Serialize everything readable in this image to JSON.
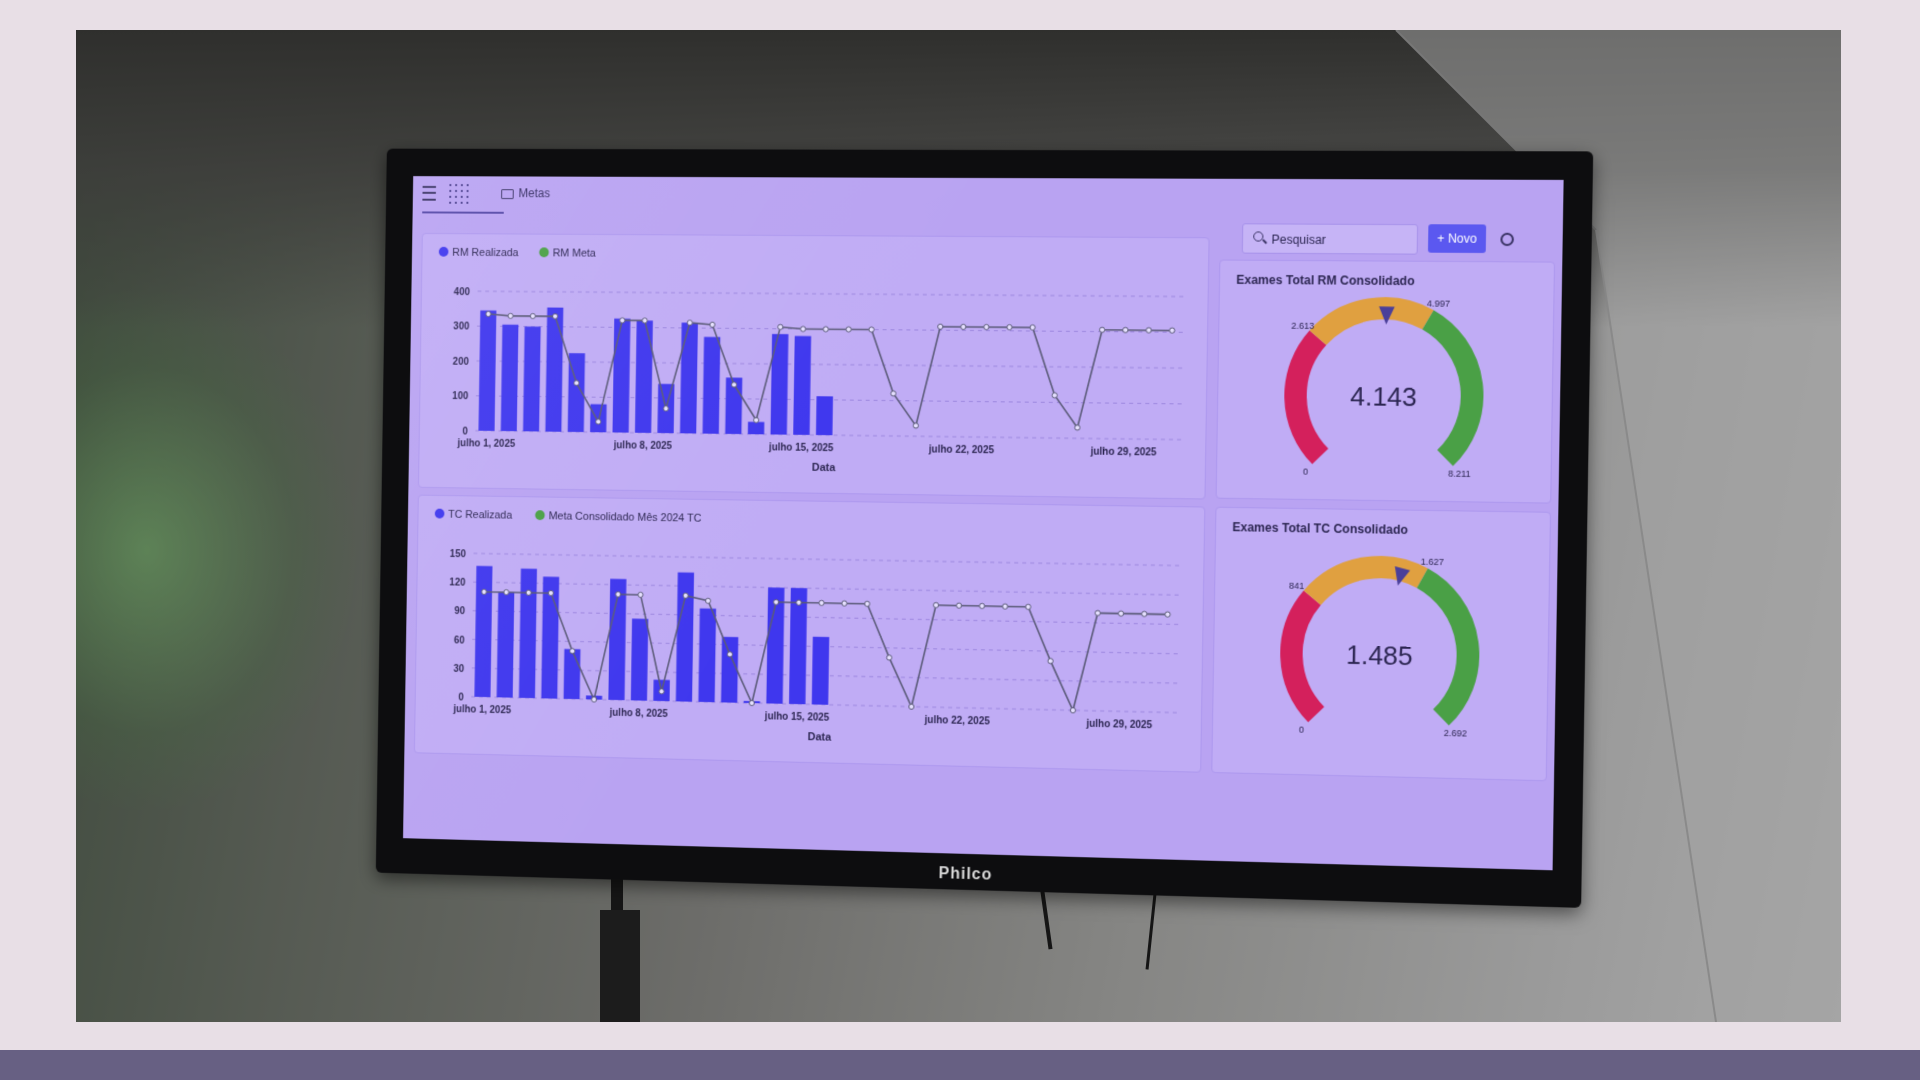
{
  "app": {
    "breadcrumb": "Metas",
    "search_placeholder": "Pesquisar",
    "new_button_label": "+ Novo",
    "monitor_brand": "Philco"
  },
  "charts": {
    "rm": {
      "legend": [
        "RM Realizada",
        "RM Meta"
      ],
      "xlabel": "Data",
      "y_ticks": [
        "0",
        "100",
        "200",
        "300",
        "400"
      ],
      "x_ticks": [
        "julho 1, 2025",
        "julho 8, 2025",
        "julho 15, 2025",
        "julho 22, 2025",
        "julho 29, 2025"
      ]
    },
    "tc": {
      "legend": [
        "TC Realizada",
        "Meta Consolidado Mês 2024 TC"
      ],
      "xlabel": "Data",
      "y_ticks": [
        "0",
        "30",
        "60",
        "90",
        "120",
        "150"
      ],
      "x_ticks": [
        "julho 1, 2025",
        "julho 8, 2025",
        "julho 15, 2025",
        "julho 22, 2025",
        "julho 29, 2025"
      ]
    },
    "gauge_rm": {
      "title": "Exames Total RM Consolidado",
      "value_label": "4.143",
      "value": 4143,
      "min": 0,
      "max": 8211,
      "t1": 2613,
      "t2": 4997,
      "labels": [
        "0",
        "2.613",
        "4.997",
        "8.211"
      ]
    },
    "gauge_tc": {
      "title": "Exames Total TC Consolidado",
      "value_label": "1.485",
      "value": 1485,
      "min": 0,
      "max": 2692,
      "t1": 841,
      "t2": 1627,
      "labels": [
        "0",
        "841",
        "1.627",
        "2.692"
      ]
    }
  },
  "colors": {
    "bar": "#3f37ee",
    "line": "#5a5a78",
    "red": "#d4205c",
    "orange": "#e0a040",
    "green": "#4aa046"
  },
  "chart_data": [
    {
      "type": "bar",
      "categories": [
        "2025-07-01",
        "2025-07-02",
        "2025-07-03",
        "2025-07-04",
        "2025-07-05",
        "2025-07-06",
        "2025-07-07",
        "2025-07-08",
        "2025-07-09",
        "2025-07-10",
        "2025-07-11",
        "2025-07-12",
        "2025-07-13",
        "2025-07-14",
        "2025-07-15",
        "2025-07-16",
        "2025-07-17",
        "2025-07-18",
        "2025-07-19",
        "2025-07-20",
        "2025-07-21",
        "2025-07-22",
        "2025-07-23",
        "2025-07-24",
        "2025-07-25",
        "2025-07-26",
        "2025-07-27",
        "2025-07-28",
        "2025-07-29",
        "2025-07-30",
        "2025-07-31"
      ],
      "series": [
        {
          "name": "RM Realizada",
          "values": [
            345,
            305,
            300,
            355,
            225,
            80,
            325,
            320,
            140,
            315,
            275,
            160,
            35,
            285,
            280,
            110,
            null,
            null,
            null,
            null,
            null,
            null,
            null,
            null,
            null,
            null,
            null,
            null,
            null,
            null,
            null
          ]
        },
        {
          "name": "RM Meta",
          "values": [
            335,
            330,
            330,
            330,
            140,
            30,
            320,
            320,
            70,
            315,
            310,
            140,
            40,
            305,
            300,
            300,
            300,
            300,
            120,
            30,
            310,
            310,
            310,
            310,
            310,
            120,
            30,
            305,
            305,
            305,
            305
          ]
        }
      ],
      "xlabel": "Data",
      "ylim": [
        0,
        400
      ]
    },
    {
      "type": "bar",
      "categories": [
        "2025-07-01",
        "2025-07-02",
        "2025-07-03",
        "2025-07-04",
        "2025-07-05",
        "2025-07-06",
        "2025-07-07",
        "2025-07-08",
        "2025-07-09",
        "2025-07-10",
        "2025-07-11",
        "2025-07-12",
        "2025-07-13",
        "2025-07-14",
        "2025-07-15",
        "2025-07-16",
        "2025-07-17",
        "2025-07-18",
        "2025-07-19",
        "2025-07-20",
        "2025-07-21",
        "2025-07-22",
        "2025-07-23",
        "2025-07-24",
        "2025-07-25",
        "2025-07-26",
        "2025-07-27",
        "2025-07-28",
        "2025-07-29",
        "2025-07-30",
        "2025-07-31"
      ],
      "series": [
        {
          "name": "TC Realizada",
          "values": [
            137,
            110,
            135,
            127,
            52,
            4,
            126,
            85,
            22,
            134,
            97,
            68,
            2,
            120,
            120,
            70,
            null,
            null,
            null,
            null,
            null,
            null,
            null,
            null,
            null,
            null,
            null,
            null,
            null,
            null,
            null
          ]
        },
        {
          "name": "Meta Consolidado Mês 2024 TC",
          "values": [
            110,
            110,
            110,
            110,
            50,
            0,
            110,
            110,
            10,
            110,
            105,
            50,
            0,
            105,
            105,
            105,
            105,
            105,
            50,
            0,
            105,
            105,
            105,
            105,
            105,
            50,
            0,
            100,
            100,
            100,
            100
          ]
        }
      ],
      "xlabel": "Data",
      "ylim": [
        0,
        150
      ]
    },
    {
      "type": "gauge",
      "title": "Exames Total RM Consolidado",
      "value": 4143,
      "min": 0,
      "max": 8211,
      "thresholds": [
        2613,
        4997
      ]
    },
    {
      "type": "gauge",
      "title": "Exames Total TC Consolidado",
      "value": 1485,
      "min": 0,
      "max": 2692,
      "thresholds": [
        841,
        1627
      ]
    }
  ]
}
